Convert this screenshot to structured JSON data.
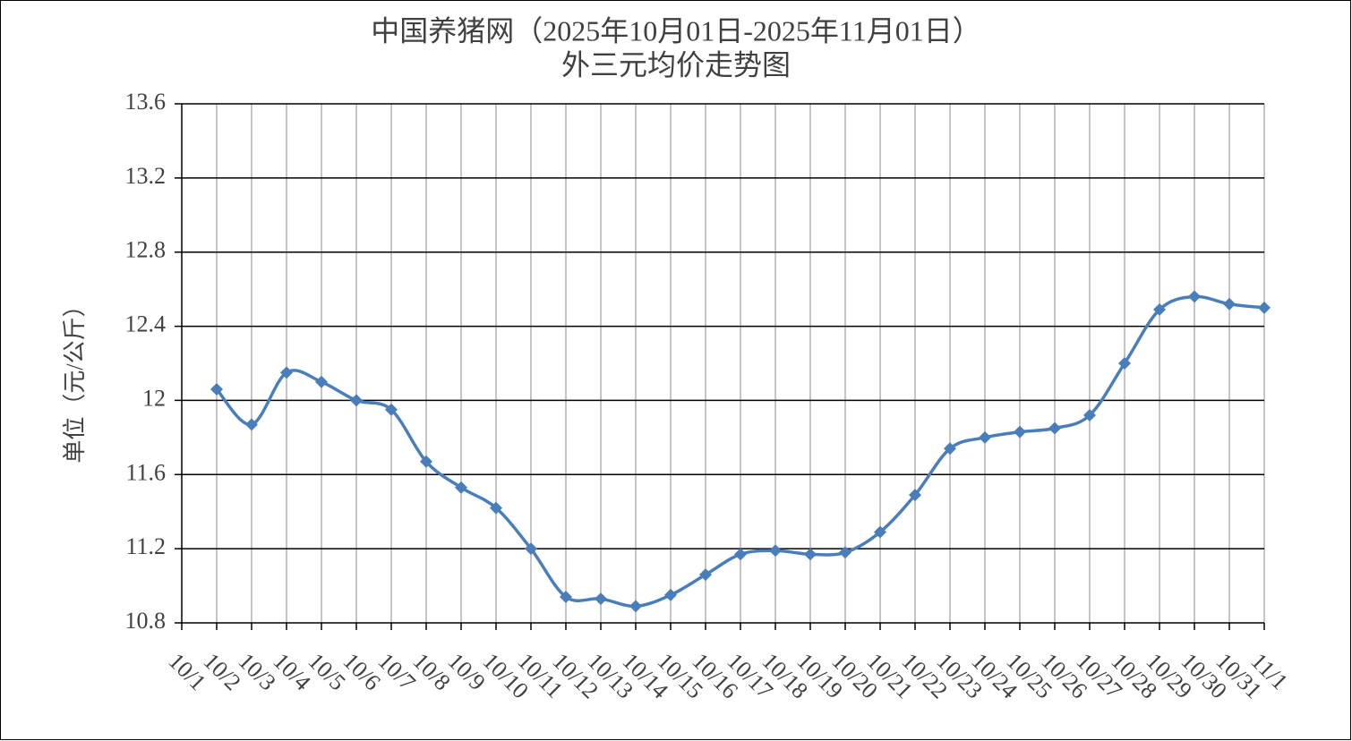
{
  "chart_data": {
    "type": "line",
    "title": "中国养猪网（2025年10月01日-2025年11月01日）",
    "subtitle": "外三元均价走势图",
    "y_label": "单位（元/公斤）",
    "categories": [
      "10/1",
      "10/2",
      "10/3",
      "10/4",
      "10/5",
      "10/6",
      "10/7",
      "10/8",
      "10/9",
      "10/10",
      "10/11",
      "10/12",
      "10/13",
      "10/14",
      "10/15",
      "10/16",
      "10/17",
      "10/18",
      "10/19",
      "10/20",
      "10/21",
      "10/22",
      "10/23",
      "10/24",
      "10/25",
      "10/26",
      "10/27",
      "10/28",
      "10/29",
      "10/30",
      "10/31",
      "11/1"
    ],
    "series": [
      {
        "name": "外三元",
        "color": "#4a7ebb",
        "values": [
          null,
          12.06,
          11.87,
          12.15,
          12.1,
          12.0,
          11.95,
          11.67,
          11.53,
          11.42,
          11.2,
          10.94,
          10.93,
          10.89,
          10.95,
          11.06,
          11.17,
          11.19,
          11.17,
          11.18,
          11.29,
          11.49,
          11.74,
          11.8,
          11.83,
          11.85,
          11.92,
          12.2,
          12.49,
          12.56,
          12.52,
          12.5
        ]
      }
    ],
    "ylim": [
      10.8,
      13.6
    ],
    "yticks": [
      10.8,
      11.2,
      11.6,
      12,
      12.4,
      12.8,
      13.2,
      13.6
    ],
    "grid": true,
    "smooth": true
  }
}
